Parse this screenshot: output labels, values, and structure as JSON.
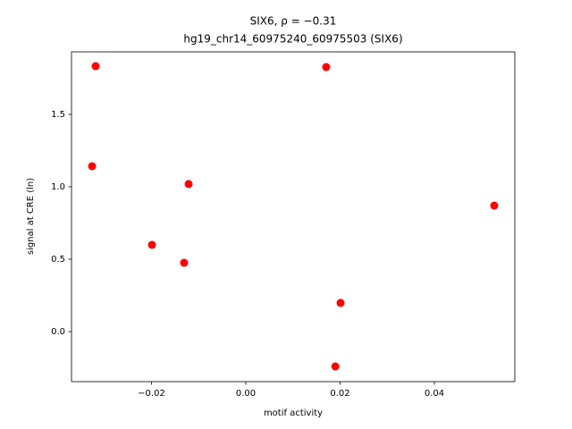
{
  "chart_data": {
    "type": "scatter",
    "title": "SIX6, ρ = −0.31",
    "subtitle": "hg19_chr14_60975240_60975503 (SIX6)",
    "x_label": "motif activity",
    "y_label": "signal at CRE (ln)",
    "color": "#ff0000",
    "x": [
      -0.03185,
      0.01706,
      -0.0326,
      -0.01213,
      0.0527,
      -0.0199,
      -0.01308,
      0.0201,
      0.019
    ],
    "values": [
      1.833,
      1.827,
      1.142,
      1.019,
      0.87,
      0.599,
      0.475,
      0.198,
      -0.241
    ],
    "xlim": [
      -0.03697,
      0.05706
    ],
    "ylim": [
      -0.3457,
      1.932
    ],
    "xticks": [
      {
        "value": -0.02,
        "label": "−0.02"
      },
      {
        "value": 0,
        "label": "0.00"
      },
      {
        "value": 0.02,
        "label": "0.02"
      },
      {
        "value": 0.04,
        "label": "0.04"
      }
    ],
    "yticks": [
      {
        "value": 0,
        "label": "0.0"
      },
      0.5,
      {
        "value": 1,
        "label": "1.0"
      },
      1.5
    ]
  }
}
